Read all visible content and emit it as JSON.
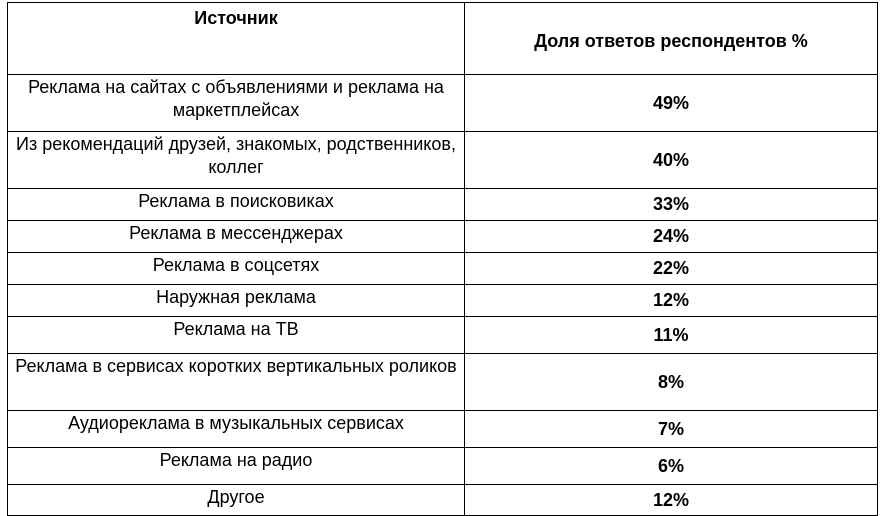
{
  "table": {
    "headers": {
      "source": "Источник",
      "share": "Доля ответов респондентов %"
    },
    "rows": [
      {
        "source": "Реклама на сайтах с объявлениями и реклама на маркетплейсах",
        "share": "49%"
      },
      {
        "source": "Из рекомендаций друзей, знакомых, родственников, коллег",
        "share": "40%"
      },
      {
        "source": "Реклама в поисковиках",
        "share": "33%"
      },
      {
        "source": "Реклама в мессенджерах",
        "share": "24%"
      },
      {
        "source": "Реклама в соцсетях",
        "share": "22%"
      },
      {
        "source": "Наружная реклама",
        "share": "12%"
      },
      {
        "source": "Реклама на ТВ",
        "share": "11%"
      },
      {
        "source": "Реклама в сервисах коротких вертикальных роликов",
        "share": "8%"
      },
      {
        "source": "Аудиореклама в музыкальных сервисах",
        "share": "7%"
      },
      {
        "source": "Реклама на радио",
        "share": "6%"
      },
      {
        "source": "Другое",
        "share": "12%"
      }
    ]
  }
}
